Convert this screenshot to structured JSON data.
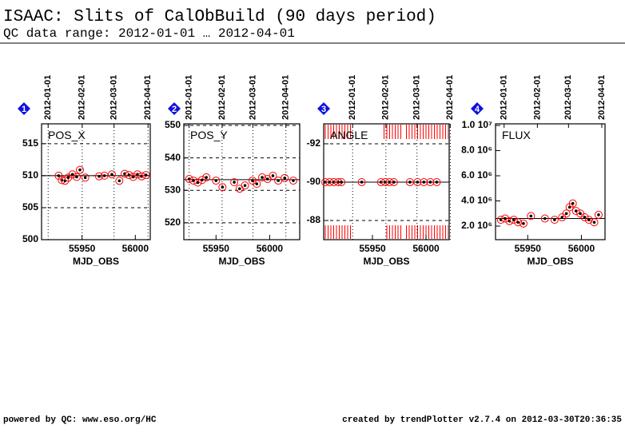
{
  "title": "ISAAC: Slits of CalObBuild (90 days period)",
  "subtitle": "QC data range: 2012-01-01 … 2012-04-01",
  "footer_left": "powered by QC: www.eso.org/HC",
  "footer_right": "created by trendPlotter v2.7.4 on 2012-03-30T20:36:35",
  "chart_data": [
    {
      "type": "scatter",
      "index": "1",
      "title": "POS_X",
      "xlabel": "MJD_OBS",
      "x": [
        55928,
        55931,
        55934,
        55937,
        55941,
        55945,
        55948,
        55953,
        55966,
        55971,
        55978,
        55985,
        55990,
        55994,
        55998,
        56002,
        56006,
        56010
      ],
      "values": [
        510.0,
        509.3,
        509.2,
        509.7,
        510.2,
        509.8,
        510.9,
        509.7,
        509.9,
        510.0,
        510.2,
        509.2,
        510.3,
        510.1,
        509.8,
        510.2,
        509.9,
        510.1
      ],
      "reference": 510.0,
      "point_color": "#000000",
      "circle_color": "#ff0000",
      "xlim": [
        55912,
        56014
      ],
      "xticks": [
        55950,
        56000
      ],
      "ylim": [
        500,
        518.1
      ],
      "yticks": [
        500,
        505,
        510,
        515
      ],
      "x2lim": [
        55921,
        56020
      ],
      "x2ticks": [
        {
          "value": 55927,
          "label": "2012-01-01"
        },
        {
          "value": 55958,
          "label": "2012-02-01"
        },
        {
          "value": 55987,
          "label": "2012-03-01"
        },
        {
          "value": 56018,
          "label": "2012-04-01"
        }
      ],
      "grid": true
    },
    {
      "type": "scatter",
      "index": "2",
      "title": "POS_Y",
      "xlabel": "MJD_OBS",
      "x": [
        55925,
        55929,
        55933,
        55937,
        55941,
        55950,
        55956,
        55967,
        55972,
        55977,
        55984,
        55988,
        55993,
        55998,
        56003,
        56008,
        56014,
        56022
      ],
      "values": [
        533.5,
        533.0,
        532.4,
        533.2,
        534.0,
        533.0,
        531.0,
        532.5,
        530.5,
        531.5,
        533.0,
        532.0,
        534.0,
        533.5,
        534.5,
        533.0,
        533.8,
        533.0
      ],
      "reference": 533.3,
      "point_color": "#000000",
      "circle_color": "#ff0000",
      "xlim": [
        55920,
        56028
      ],
      "xticks": [
        55950,
        56000
      ],
      "ylim": [
        514.8,
        550.5
      ],
      "yticks": [
        520,
        530,
        540,
        550
      ],
      "x2lim": [
        55922,
        56031
      ],
      "x2ticks": [
        {
          "value": 55927,
          "label": "2012-01-01"
        },
        {
          "value": 55958,
          "label": "2012-02-01"
        },
        {
          "value": 55987,
          "label": "2012-03-01"
        },
        {
          "value": 56018,
          "label": "2012-04-01"
        }
      ],
      "grid": true
    },
    {
      "type": "scatter",
      "index": "3",
      "title": "ANGLE",
      "xlabel": "MJD_OBS",
      "x": [
        55906,
        55910,
        55914,
        55918,
        55921,
        55940,
        55958,
        55962,
        55966,
        55970,
        55985,
        55992,
        55998,
        56004,
        56010
      ],
      "values": [
        -90.0,
        -90.0,
        -90.0,
        -90.0,
        -90.0,
        -90.0,
        -90.0,
        -90.0,
        -90.0,
        -90.0,
        -90.0,
        -90.0,
        -90.0,
        -90.0,
        -90.0
      ],
      "reference": -90.0,
      "point_color": "#000000",
      "circle_color": "#ff0000",
      "xlim": [
        55904.5,
        56021.6
      ],
      "xticks": [
        55950,
        56000
      ],
      "ylim": [
        -87.0,
        -93.04
      ],
      "yticks": [
        -92,
        -90,
        -88
      ],
      "x2lim": [
        55900,
        56017
      ],
      "x2ticks": [
        {
          "value": 55927,
          "label": "2012-01-01"
        },
        {
          "value": 55958,
          "label": "2012-02-01"
        },
        {
          "value": 55987,
          "label": "2012-03-01"
        },
        {
          "value": 56018,
          "label": "2012-04-01"
        }
      ],
      "grid": true
    },
    {
      "type": "scatter",
      "index": "4",
      "title": "FLUX",
      "xlabel": "MJD_OBS",
      "x": [
        55925,
        55929,
        55933,
        55937,
        55941,
        55946,
        55953,
        55966,
        55975,
        55982,
        55986,
        55989,
        55992,
        55995,
        55999,
        56003,
        56007,
        56012,
        56016
      ],
      "values": [
        2500000,
        2600000,
        2400000,
        2500000,
        2300000,
        2200000,
        2800000,
        2600000,
        2500000,
        2700000,
        3000000,
        3500000,
        3800000,
        3200000,
        3000000,
        2700000,
        2500000,
        2300000,
        2900000
      ],
      "reference": 2600000,
      "point_color": "#000000",
      "circle_color": "#ff0000",
      "xlim": [
        55920,
        56022
      ],
      "xticks": [
        55950,
        56000
      ],
      "ylim": [
        920000,
        10130000
      ],
      "yticks": [
        {
          "value": 2000000,
          "label": "2.0 10⁶"
        },
        {
          "value": 4000000,
          "label": "4.0 10⁶"
        },
        {
          "value": 6000000,
          "label": "6.0 10⁶"
        },
        {
          "value": 8000000,
          "label": "8.0 10⁶"
        },
        {
          "value": 10000000,
          "label": "1.0 10⁷"
        }
      ],
      "x2lim": [
        55919,
        56021
      ],
      "x2ticks": [
        {
          "value": 55927,
          "label": "2012-01-01"
        },
        {
          "value": 55958,
          "label": "2012-02-01"
        },
        {
          "value": 55987,
          "label": "2012-03-01"
        },
        {
          "value": 56018,
          "label": "2012-04-01"
        }
      ],
      "grid": false
    }
  ]
}
